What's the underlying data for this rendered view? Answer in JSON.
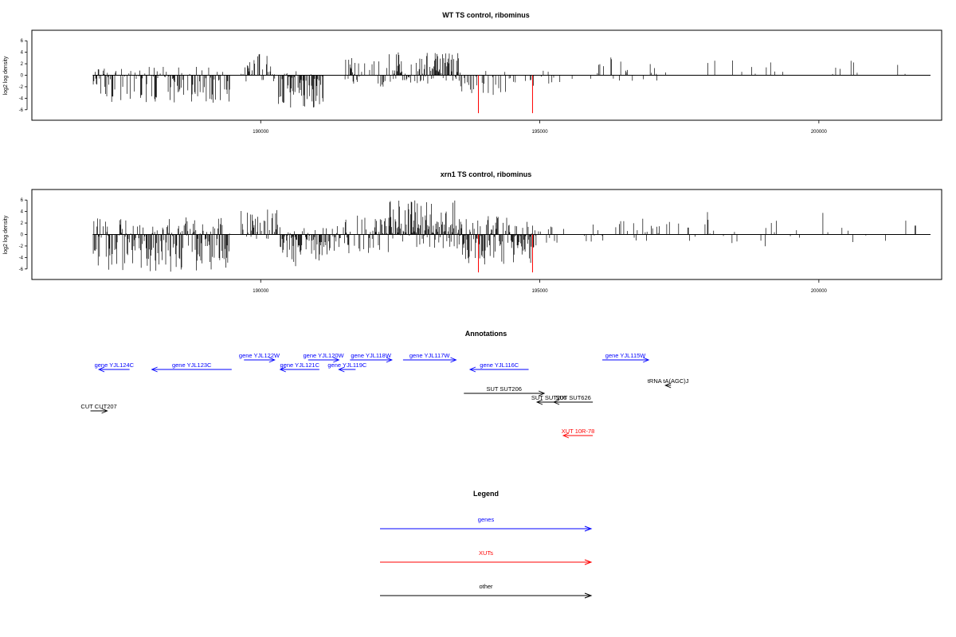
{
  "chart_data": [
    {
      "type": "bar",
      "title": "WT TS control, ribominus",
      "ylabel": "log2 log density",
      "xlim": [
        186900,
        202000
      ],
      "ylim": [
        -7,
        7
      ],
      "yticks": [
        -6,
        -4,
        -2,
        0,
        2,
        4,
        6
      ],
      "xticks": [
        190000,
        195000,
        200000
      ],
      "xtick_labels": [
        "190000",
        "195000",
        "200000"
      ],
      "red_values": [
        {
          "x": 193900,
          "y": -6.6
        },
        {
          "x": 194870,
          "y": -6.6
        }
      ]
    },
    {
      "type": "bar",
      "title": "xrn1 TS control, ribominus",
      "ylabel": "log2 log density",
      "xlim": [
        186900,
        202000
      ],
      "ylim": [
        -7,
        7
      ],
      "yticks": [
        -6,
        -4,
        -2,
        0,
        2,
        4,
        6
      ],
      "xticks": [
        190000,
        195000,
        200000
      ],
      "xtick_labels": [
        "190000",
        "195000",
        "200000"
      ],
      "red_values": [
        {
          "x": 193900,
          "y": -6.6
        },
        {
          "x": 194870,
          "y": -6.6
        }
      ]
    }
  ],
  "annotations": {
    "title": "Annotations",
    "colors": {
      "gene": "#0000ff",
      "xut": "#ff0000",
      "other": "#000000"
    },
    "features": [
      {
        "label": "gene YJL124C",
        "start": 187100,
        "end": 187650,
        "strand": "-",
        "kind": "gene",
        "row": 2
      },
      {
        "label": "gene YJL123C",
        "start": 188050,
        "end": 189480,
        "strand": "-",
        "kind": "gene",
        "row": 2
      },
      {
        "label": "gene YJL122W",
        "start": 189700,
        "end": 190250,
        "strand": "+",
        "kind": "gene",
        "row": 1
      },
      {
        "label": "gene YJL121C",
        "start": 190350,
        "end": 191050,
        "strand": "-",
        "kind": "gene",
        "row": 2
      },
      {
        "label": "gene YJL120W",
        "start": 190850,
        "end": 191400,
        "strand": "+",
        "kind": "gene",
        "row": 1
      },
      {
        "label": "gene YJL119C",
        "start": 191400,
        "end": 191700,
        "strand": "-",
        "kind": "gene",
        "row": 2
      },
      {
        "label": "gene YJL118W",
        "start": 191600,
        "end": 192350,
        "strand": "+",
        "kind": "gene",
        "row": 1
      },
      {
        "label": "gene YJL117W",
        "start": 192550,
        "end": 193500,
        "strand": "+",
        "kind": "gene",
        "row": 1
      },
      {
        "label": "gene YJL116C",
        "start": 193750,
        "end": 194800,
        "strand": "-",
        "kind": "gene",
        "row": 2
      },
      {
        "label": "gene YJL115W",
        "start": 196120,
        "end": 196950,
        "strand": "+",
        "kind": "gene",
        "row": 1
      },
      {
        "label": "tRNA tA(AGC)J",
        "start": 197250,
        "end": 197350,
        "strand": "-",
        "kind": "other",
        "row": 3
      },
      {
        "label": "SUT SUT206",
        "start": 193640,
        "end": 195080,
        "strand": "+",
        "kind": "other",
        "row": 4
      },
      {
        "label": "SUT SUT206",
        "start": 194950,
        "end": 195380,
        "strand": "-",
        "kind": "other",
        "row": 5
      },
      {
        "label": "SUT SUT626",
        "start": 195250,
        "end": 195950,
        "strand": "-",
        "kind": "other",
        "row": 5
      },
      {
        "label": "CUT CUT207",
        "start": 186950,
        "end": 187250,
        "strand": "+",
        "kind": "other",
        "row": 6
      },
      {
        "label": "XUT 10R-78",
        "start": 195420,
        "end": 195950,
        "strand": "-",
        "kind": "xut",
        "row": 7
      }
    ]
  },
  "legend": {
    "title": "Legend",
    "items": [
      {
        "label": "genes",
        "color": "#0000ff"
      },
      {
        "label": "XUTs",
        "color": "#ff0000"
      },
      {
        "label": "other",
        "color": "#000000"
      }
    ]
  }
}
